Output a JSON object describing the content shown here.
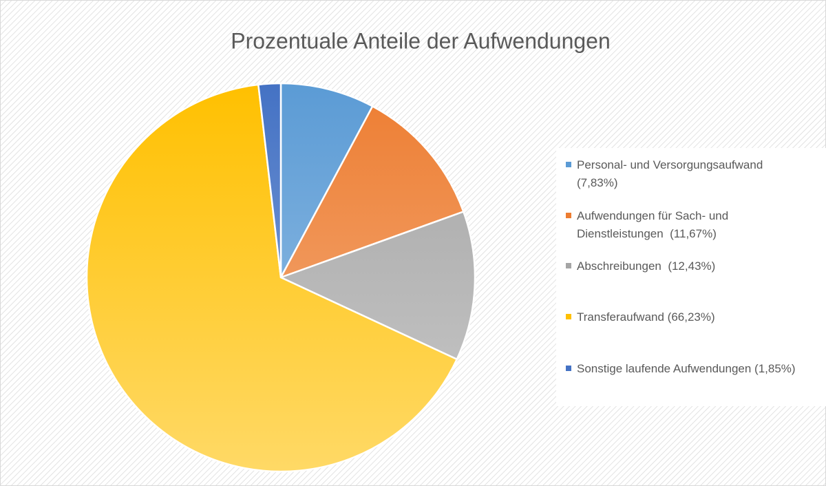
{
  "chart_data": {
    "type": "pie",
    "title": "Prozentuale Anteile der Aufwendungen",
    "categories": [
      "Personal- und Versorgungsaufwand (7,83%)",
      "Aufwendungen für Sach- und Dienstleistungen  (11,67%)",
      "Abschreibungen  (12,43%)",
      "Transferaufwand (66,23%)",
      "Sonstige laufende Aufwendungen (1,85%)"
    ],
    "values": [
      7.83,
      11.67,
      12.43,
      66.23,
      1.85
    ],
    "colors": [
      "#5b9bd5",
      "#ed7d31",
      "#a5a5a5",
      "#ffc000",
      "#4472c4"
    ],
    "legend": "right"
  }
}
